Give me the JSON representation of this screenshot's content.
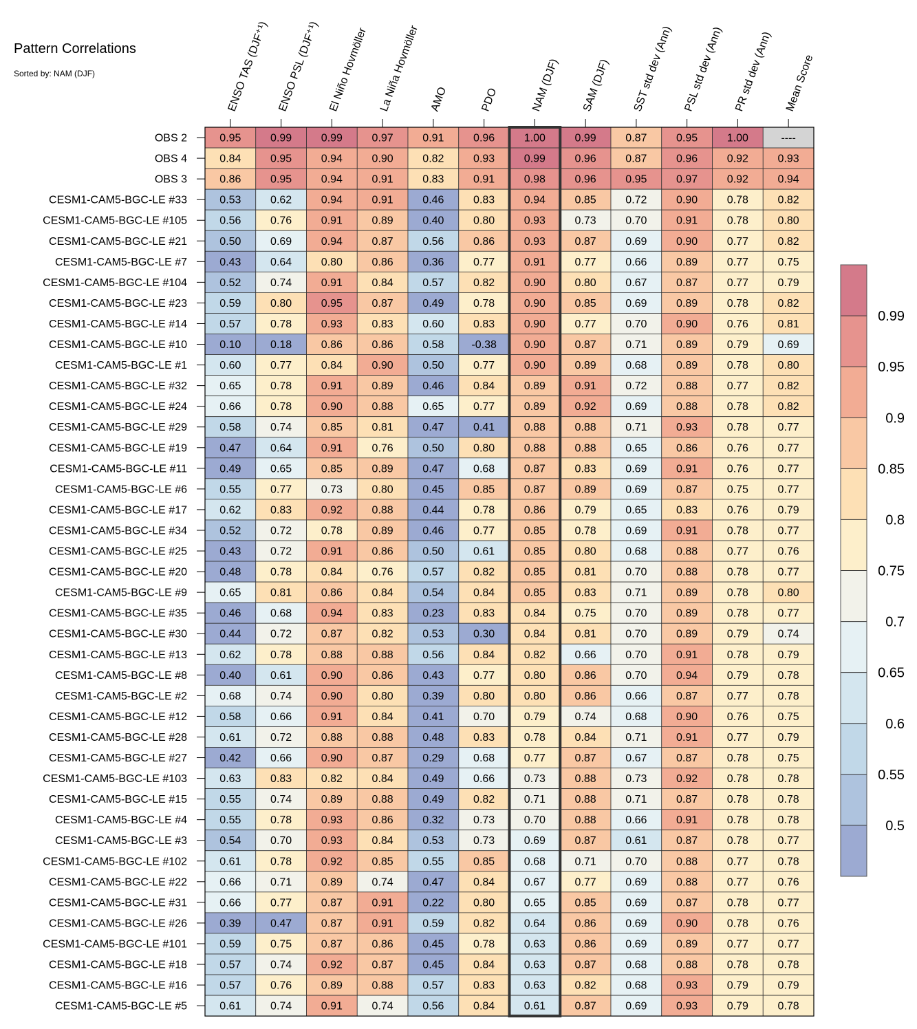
{
  "chart_data": {
    "type": "heatmap",
    "title": "Pattern Correlations",
    "subtitle": "Sorted by: NAM (DJF)",
    "columns": [
      "ENSO TAS (DJF⁺¹)",
      "ENSO PSL (DJF⁺¹)",
      "El Niño Hovmöller",
      "La Niña Hovmöller",
      "AMO",
      "PDO",
      "NAM (DJF)",
      "SAM (DJF)",
      "SST std dev (Ann)",
      "PSL std dev (Ann)",
      "PR std dev (Ann)",
      "Mean Score"
    ],
    "highlighted_column": "NAM (DJF)",
    "rows": [
      {
        "label": "OBS 2",
        "values": [
          "0.95",
          "0.99",
          "0.99",
          "0.97",
          "0.91",
          "0.96",
          "1.00",
          "0.99",
          "0.87",
          "0.95",
          "1.00",
          "----"
        ]
      },
      {
        "label": "OBS 4",
        "values": [
          "0.84",
          "0.95",
          "0.94",
          "0.90",
          "0.82",
          "0.93",
          "0.99",
          "0.96",
          "0.87",
          "0.96",
          "0.92",
          "0.93"
        ]
      },
      {
        "label": "OBS 3",
        "values": [
          "0.86",
          "0.95",
          "0.94",
          "0.91",
          "0.83",
          "0.91",
          "0.98",
          "0.96",
          "0.95",
          "0.97",
          "0.92",
          "0.94"
        ]
      },
      {
        "label": "CESM1-CAM5-BGC-LE #33",
        "values": [
          "0.53",
          "0.62",
          "0.94",
          "0.91",
          "0.46",
          "0.83",
          "0.94",
          "0.85",
          "0.72",
          "0.90",
          "0.78",
          "0.82"
        ]
      },
      {
        "label": "CESM1-CAM5-BGC-LE #105",
        "values": [
          "0.56",
          "0.76",
          "0.91",
          "0.89",
          "0.40",
          "0.80",
          "0.93",
          "0.73",
          "0.70",
          "0.91",
          "0.78",
          "0.80"
        ]
      },
      {
        "label": "CESM1-CAM5-BGC-LE #21",
        "values": [
          "0.50",
          "0.69",
          "0.94",
          "0.87",
          "0.56",
          "0.86",
          "0.93",
          "0.87",
          "0.69",
          "0.90",
          "0.77",
          "0.82"
        ]
      },
      {
        "label": "CESM1-CAM5-BGC-LE #7",
        "values": [
          "0.43",
          "0.64",
          "0.80",
          "0.86",
          "0.36",
          "0.77",
          "0.91",
          "0.77",
          "0.66",
          "0.89",
          "0.77",
          "0.75"
        ]
      },
      {
        "label": "CESM1-CAM5-BGC-LE #104",
        "values": [
          "0.52",
          "0.74",
          "0.91",
          "0.84",
          "0.57",
          "0.82",
          "0.90",
          "0.80",
          "0.67",
          "0.87",
          "0.77",
          "0.79"
        ]
      },
      {
        "label": "CESM1-CAM5-BGC-LE #23",
        "values": [
          "0.59",
          "0.80",
          "0.95",
          "0.87",
          "0.49",
          "0.78",
          "0.90",
          "0.85",
          "0.69",
          "0.89",
          "0.78",
          "0.82"
        ]
      },
      {
        "label": "CESM1-CAM5-BGC-LE #14",
        "values": [
          "0.57",
          "0.78",
          "0.93",
          "0.83",
          "0.60",
          "0.83",
          "0.90",
          "0.77",
          "0.70",
          "0.90",
          "0.76",
          "0.81"
        ]
      },
      {
        "label": "CESM1-CAM5-BGC-LE #10",
        "values": [
          "0.10",
          "0.18",
          "0.86",
          "0.86",
          "0.58",
          "-0.38",
          "0.90",
          "0.87",
          "0.71",
          "0.89",
          "0.79",
          "0.69"
        ]
      },
      {
        "label": "CESM1-CAM5-BGC-LE #1",
        "values": [
          "0.60",
          "0.77",
          "0.84",
          "0.90",
          "0.50",
          "0.77",
          "0.90",
          "0.89",
          "0.68",
          "0.89",
          "0.78",
          "0.80"
        ]
      },
      {
        "label": "CESM1-CAM5-BGC-LE #32",
        "values": [
          "0.65",
          "0.78",
          "0.91",
          "0.89",
          "0.46",
          "0.84",
          "0.89",
          "0.91",
          "0.72",
          "0.88",
          "0.77",
          "0.82"
        ]
      },
      {
        "label": "CESM1-CAM5-BGC-LE #24",
        "values": [
          "0.66",
          "0.78",
          "0.90",
          "0.88",
          "0.65",
          "0.77",
          "0.89",
          "0.92",
          "0.69",
          "0.88",
          "0.78",
          "0.82"
        ]
      },
      {
        "label": "CESM1-CAM5-BGC-LE #29",
        "values": [
          "0.58",
          "0.74",
          "0.85",
          "0.81",
          "0.47",
          "0.41",
          "0.88",
          "0.88",
          "0.71",
          "0.93",
          "0.78",
          "0.77"
        ]
      },
      {
        "label": "CESM1-CAM5-BGC-LE #19",
        "values": [
          "0.47",
          "0.64",
          "0.91",
          "0.76",
          "0.50",
          "0.80",
          "0.88",
          "0.88",
          "0.65",
          "0.86",
          "0.76",
          "0.77"
        ]
      },
      {
        "label": "CESM1-CAM5-BGC-LE #11",
        "values": [
          "0.49",
          "0.65",
          "0.85",
          "0.89",
          "0.47",
          "0.68",
          "0.87",
          "0.83",
          "0.69",
          "0.91",
          "0.76",
          "0.77"
        ]
      },
      {
        "label": "CESM1-CAM5-BGC-LE #6",
        "values": [
          "0.55",
          "0.77",
          "0.73",
          "0.80",
          "0.45",
          "0.85",
          "0.87",
          "0.89",
          "0.69",
          "0.87",
          "0.75",
          "0.77"
        ]
      },
      {
        "label": "CESM1-CAM5-BGC-LE #17",
        "values": [
          "0.62",
          "0.83",
          "0.92",
          "0.88",
          "0.44",
          "0.78",
          "0.86",
          "0.79",
          "0.65",
          "0.83",
          "0.76",
          "0.79"
        ]
      },
      {
        "label": "CESM1-CAM5-BGC-LE #34",
        "values": [
          "0.52",
          "0.72",
          "0.78",
          "0.89",
          "0.46",
          "0.77",
          "0.85",
          "0.78",
          "0.69",
          "0.91",
          "0.78",
          "0.77"
        ]
      },
      {
        "label": "CESM1-CAM5-BGC-LE #25",
        "values": [
          "0.43",
          "0.72",
          "0.91",
          "0.86",
          "0.50",
          "0.61",
          "0.85",
          "0.80",
          "0.68",
          "0.88",
          "0.77",
          "0.76"
        ]
      },
      {
        "label": "CESM1-CAM5-BGC-LE #20",
        "values": [
          "0.48",
          "0.78",
          "0.84",
          "0.76",
          "0.57",
          "0.82",
          "0.85",
          "0.81",
          "0.70",
          "0.88",
          "0.78",
          "0.77"
        ]
      },
      {
        "label": "CESM1-CAM5-BGC-LE #9",
        "values": [
          "0.65",
          "0.81",
          "0.86",
          "0.84",
          "0.54",
          "0.84",
          "0.85",
          "0.83",
          "0.71",
          "0.89",
          "0.78",
          "0.80"
        ]
      },
      {
        "label": "CESM1-CAM5-BGC-LE #35",
        "values": [
          "0.46",
          "0.68",
          "0.94",
          "0.83",
          "0.23",
          "0.83",
          "0.84",
          "0.75",
          "0.70",
          "0.89",
          "0.78",
          "0.77"
        ]
      },
      {
        "label": "CESM1-CAM5-BGC-LE #30",
        "values": [
          "0.44",
          "0.72",
          "0.87",
          "0.82",
          "0.53",
          "0.30",
          "0.84",
          "0.81",
          "0.70",
          "0.89",
          "0.79",
          "0.74"
        ]
      },
      {
        "label": "CESM1-CAM5-BGC-LE #13",
        "values": [
          "0.62",
          "0.78",
          "0.88",
          "0.88",
          "0.56",
          "0.84",
          "0.82",
          "0.66",
          "0.70",
          "0.91",
          "0.78",
          "0.79"
        ]
      },
      {
        "label": "CESM1-CAM5-BGC-LE #8",
        "values": [
          "0.40",
          "0.61",
          "0.90",
          "0.86",
          "0.43",
          "0.77",
          "0.80",
          "0.86",
          "0.70",
          "0.94",
          "0.79",
          "0.78"
        ]
      },
      {
        "label": "CESM1-CAM5-BGC-LE #2",
        "values": [
          "0.68",
          "0.74",
          "0.90",
          "0.80",
          "0.39",
          "0.80",
          "0.80",
          "0.86",
          "0.66",
          "0.87",
          "0.77",
          "0.78"
        ]
      },
      {
        "label": "CESM1-CAM5-BGC-LE #12",
        "values": [
          "0.58",
          "0.66",
          "0.91",
          "0.84",
          "0.41",
          "0.70",
          "0.79",
          "0.74",
          "0.68",
          "0.90",
          "0.76",
          "0.75"
        ]
      },
      {
        "label": "CESM1-CAM5-BGC-LE #28",
        "values": [
          "0.61",
          "0.72",
          "0.88",
          "0.88",
          "0.48",
          "0.83",
          "0.78",
          "0.84",
          "0.71",
          "0.91",
          "0.77",
          "0.79"
        ]
      },
      {
        "label": "CESM1-CAM5-BGC-LE #27",
        "values": [
          "0.42",
          "0.66",
          "0.90",
          "0.87",
          "0.29",
          "0.68",
          "0.77",
          "0.87",
          "0.67",
          "0.87",
          "0.78",
          "0.75"
        ]
      },
      {
        "label": "CESM1-CAM5-BGC-LE #103",
        "values": [
          "0.63",
          "0.83",
          "0.82",
          "0.84",
          "0.49",
          "0.66",
          "0.73",
          "0.88",
          "0.73",
          "0.92",
          "0.78",
          "0.78"
        ]
      },
      {
        "label": "CESM1-CAM5-BGC-LE #15",
        "values": [
          "0.55",
          "0.74",
          "0.89",
          "0.88",
          "0.49",
          "0.82",
          "0.71",
          "0.88",
          "0.71",
          "0.87",
          "0.78",
          "0.78"
        ]
      },
      {
        "label": "CESM1-CAM5-BGC-LE #4",
        "values": [
          "0.55",
          "0.78",
          "0.93",
          "0.86",
          "0.32",
          "0.73",
          "0.70",
          "0.88",
          "0.66",
          "0.91",
          "0.78",
          "0.78"
        ]
      },
      {
        "label": "CESM1-CAM5-BGC-LE #3",
        "values": [
          "0.54",
          "0.70",
          "0.93",
          "0.84",
          "0.53",
          "0.73",
          "0.69",
          "0.87",
          "0.61",
          "0.87",
          "0.78",
          "0.77"
        ]
      },
      {
        "label": "CESM1-CAM5-BGC-LE #102",
        "values": [
          "0.61",
          "0.78",
          "0.92",
          "0.85",
          "0.55",
          "0.85",
          "0.68",
          "0.71",
          "0.70",
          "0.88",
          "0.77",
          "0.78"
        ]
      },
      {
        "label": "CESM1-CAM5-BGC-LE #22",
        "values": [
          "0.66",
          "0.71",
          "0.89",
          "0.74",
          "0.47",
          "0.84",
          "0.67",
          "0.77",
          "0.69",
          "0.88",
          "0.77",
          "0.76"
        ]
      },
      {
        "label": "CESM1-CAM5-BGC-LE #31",
        "values": [
          "0.66",
          "0.77",
          "0.87",
          "0.91",
          "0.22",
          "0.80",
          "0.65",
          "0.85",
          "0.69",
          "0.87",
          "0.78",
          "0.77"
        ]
      },
      {
        "label": "CESM1-CAM5-BGC-LE #26",
        "values": [
          "0.39",
          "0.47",
          "0.87",
          "0.91",
          "0.59",
          "0.82",
          "0.64",
          "0.86",
          "0.69",
          "0.90",
          "0.78",
          "0.76"
        ]
      },
      {
        "label": "CESM1-CAM5-BGC-LE #101",
        "values": [
          "0.59",
          "0.75",
          "0.87",
          "0.86",
          "0.45",
          "0.78",
          "0.63",
          "0.86",
          "0.69",
          "0.89",
          "0.77",
          "0.77"
        ]
      },
      {
        "label": "CESM1-CAM5-BGC-LE #18",
        "values": [
          "0.57",
          "0.74",
          "0.92",
          "0.87",
          "0.45",
          "0.84",
          "0.63",
          "0.87",
          "0.68",
          "0.88",
          "0.78",
          "0.78"
        ]
      },
      {
        "label": "CESM1-CAM5-BGC-LE #16",
        "values": [
          "0.57",
          "0.76",
          "0.89",
          "0.88",
          "0.57",
          "0.83",
          "0.63",
          "0.82",
          "0.68",
          "0.93",
          "0.79",
          "0.79"
        ]
      },
      {
        "label": "CESM1-CAM5-BGC-LE #5",
        "values": [
          "0.61",
          "0.74",
          "0.91",
          "0.74",
          "0.56",
          "0.84",
          "0.61",
          "0.87",
          "0.69",
          "0.93",
          "0.79",
          "0.78"
        ]
      }
    ],
    "colorbar": {
      "levels": [
        0.5,
        0.55,
        0.6,
        0.65,
        0.7,
        0.75,
        0.8,
        0.85,
        0.9,
        0.95,
        0.99
      ],
      "tick_labels": [
        "0.5",
        "0.55",
        "0.6",
        "0.65",
        "0.7",
        "0.75",
        "0.8",
        "0.85",
        "0.9",
        "0.95",
        "0.99"
      ],
      "colors": [
        "#9caad2",
        "#aec3de",
        "#c1d8e8",
        "#d4e6ef",
        "#e6f1f4",
        "#f2f2ea",
        "#fdefcb",
        "#fde0b5",
        "#f9c8a4",
        "#f2ac94",
        "#e6938e",
        "#d47a8a"
      ],
      "missing_color": "#d4d4d4"
    }
  }
}
